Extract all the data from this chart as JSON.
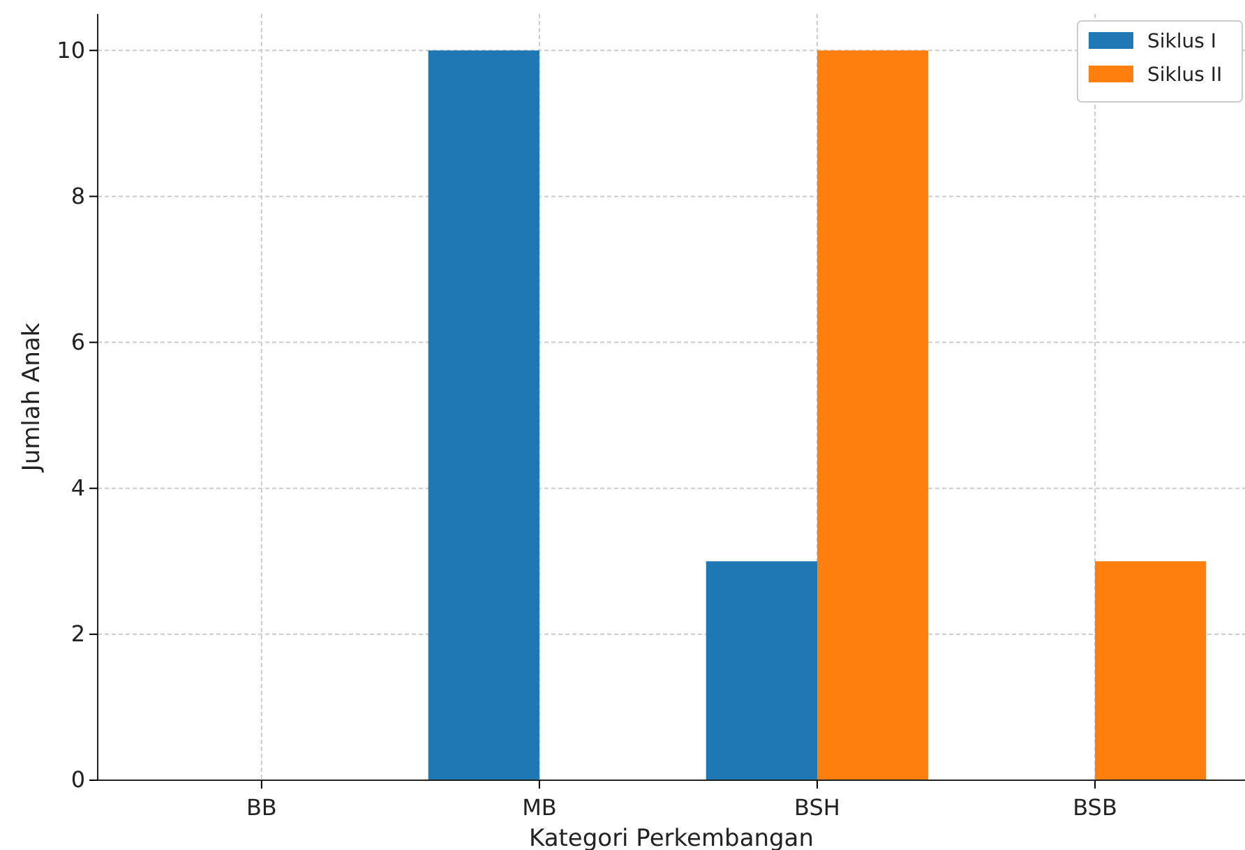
{
  "chart_data": {
    "type": "bar",
    "xlabel": "Kategori Perkembangan",
    "ylabel": "Jumlah Anak",
    "categories": [
      "BB",
      "MB",
      "BSH",
      "BSB"
    ],
    "series": [
      {
        "name": "Siklus I",
        "color": "#1f77b4",
        "values": [
          0,
          10,
          3,
          0
        ]
      },
      {
        "name": "Siklus II",
        "color": "#ff7f0e",
        "values": [
          0,
          0,
          10,
          3
        ]
      }
    ],
    "ylim": [
      0,
      10.5
    ],
    "yticks": [
      0,
      2,
      4,
      6,
      8,
      10
    ],
    "grid": true,
    "legend": "top right"
  }
}
